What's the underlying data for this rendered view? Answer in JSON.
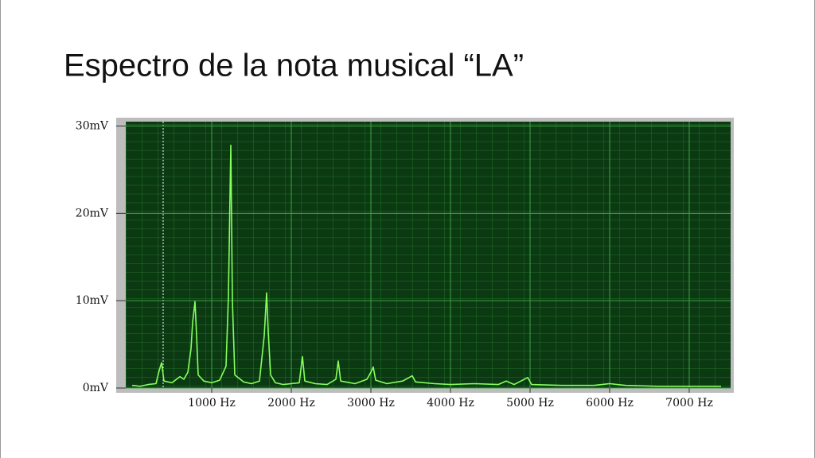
{
  "chart_data": {
    "type": "line",
    "title": "Espectro de la nota musical “LA”",
    "x": [
      0,
      100,
      200,
      300,
      340,
      370,
      400,
      500,
      600,
      650,
      700,
      740,
      760,
      790,
      810,
      830,
      900,
      1000,
      1100,
      1180,
      1210,
      1240,
      1260,
      1290,
      1400,
      1500,
      1600,
      1660,
      1690,
      1710,
      1740,
      1800,
      1900,
      2000,
      2100,
      2140,
      2170,
      2300,
      2450,
      2560,
      2590,
      2620,
      2800,
      2950,
      3000,
      3030,
      3060,
      3200,
      3400,
      3480,
      3520,
      3560,
      3800,
      4000,
      4300,
      4600,
      4700,
      4800,
      4970,
      5020,
      5400,
      5800,
      6000,
      6200,
      6600,
      7000,
      7400
    ],
    "series": [
      {
        "name": "Espectro",
        "color": "#86ff5e",
        "values": [
          0.3,
          0.2,
          0.4,
          0.5,
          2.0,
          2.9,
          0.8,
          0.6,
          1.3,
          1.0,
          1.8,
          4.5,
          7.5,
          9.9,
          6.0,
          1.5,
          0.8,
          0.6,
          0.9,
          2.5,
          10.5,
          27.8,
          10.0,
          1.5,
          0.7,
          0.5,
          0.8,
          6.0,
          10.9,
          6.5,
          1.5,
          0.6,
          0.4,
          0.5,
          0.6,
          3.6,
          0.8,
          0.5,
          0.4,
          1.0,
          3.1,
          0.8,
          0.5,
          1.0,
          1.8,
          2.4,
          0.9,
          0.5,
          0.8,
          1.2,
          1.4,
          0.7,
          0.5,
          0.4,
          0.5,
          0.4,
          0.8,
          0.4,
          1.2,
          0.4,
          0.3,
          0.3,
          0.5,
          0.3,
          0.2,
          0.2,
          0.2
        ]
      }
    ],
    "xlim": [
      -80,
      7520
    ],
    "xticks": [
      {
        "value": 1000,
        "label": "1000 Hz"
      },
      {
        "value": 2000,
        "label": "2000 Hz"
      },
      {
        "value": 3000,
        "label": "3000 Hz"
      },
      {
        "value": 4000,
        "label": "4000 Hz"
      },
      {
        "value": 5000,
        "label": "5000 Hz"
      },
      {
        "value": 6000,
        "label": "6000 Hz"
      },
      {
        "value": 7000,
        "label": "7000 Hz"
      }
    ],
    "ylim": [
      0,
      30.5
    ],
    "yticks": [
      {
        "value": 0,
        "label": "0mV"
      },
      {
        "value": 10,
        "label": "10mV"
      },
      {
        "value": 20,
        "label": "20mV"
      },
      {
        "value": 30,
        "label": "30mV"
      }
    ],
    "grid": true
  }
}
